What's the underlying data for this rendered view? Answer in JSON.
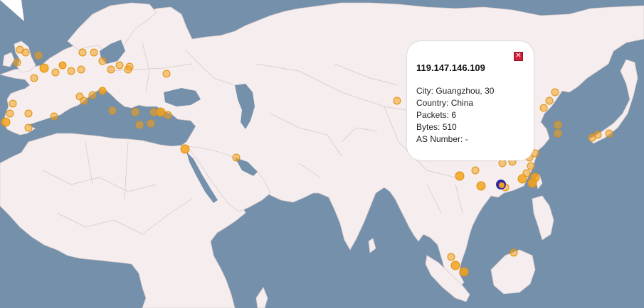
{
  "popup": {
    "title": "119.147.146.109",
    "close_icon": "close-icon",
    "rows": [
      {
        "label": "City:",
        "value": "Guangzhou, 30"
      },
      {
        "label": "Country:",
        "value": "China"
      },
      {
        "label": "Packets:",
        "value": "6"
      },
      {
        "label": "Bytes:",
        "value": "510"
      },
      {
        "label": "AS Number:",
        "value": "-"
      }
    ]
  },
  "colors": {
    "ocean": "#7590ab",
    "land": "#f6eeee",
    "marker": "#f3a21c",
    "selected_marker_ring": "#2f2aa8",
    "close_button": "#d21f3c"
  }
}
